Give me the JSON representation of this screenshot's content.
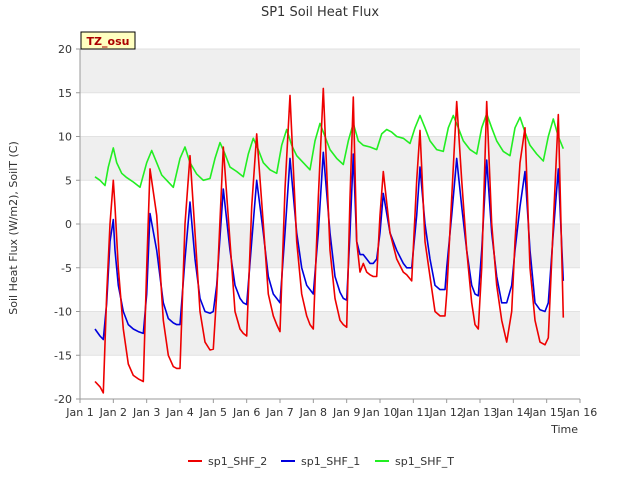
{
  "chart_data": {
    "type": "line",
    "title": "SP1 Soil Heat Flux",
    "xlabel": "Time",
    "ylabel": "Soil Heat Flux (W/m2), SoilT (C)",
    "badge": "TZ_osu",
    "xlim": [
      1,
      16
    ],
    "ylim": [
      -20,
      20
    ],
    "x_ticks": [
      {
        "value": 1,
        "label": "Jan 1"
      },
      {
        "value": 2,
        "label": "Jan 2"
      },
      {
        "value": 3,
        "label": "Jan 3"
      },
      {
        "value": 4,
        "label": "Jan 4"
      },
      {
        "value": 5,
        "label": "Jan 5"
      },
      {
        "value": 6,
        "label": "Jan 6"
      },
      {
        "value": 7,
        "label": "Jan 7"
      },
      {
        "value": 8,
        "label": "Jan 8"
      },
      {
        "value": 9,
        "label": "Jan 9"
      },
      {
        "value": 10,
        "label": "Jan 10"
      },
      {
        "value": 11,
        "label": "Jan 11"
      },
      {
        "value": 12,
        "label": "Jan 12"
      },
      {
        "value": 13,
        "label": "Jan 13"
      },
      {
        "value": 14,
        "label": "Jan 14"
      },
      {
        "value": 15,
        "label": "Jan 15"
      },
      {
        "value": 16,
        "label": "Jan 16"
      }
    ],
    "y_ticks": [
      -20,
      -15,
      -10,
      -5,
      0,
      5,
      10,
      15,
      20
    ],
    "grid": true,
    "legend_position": "bottom",
    "series": [
      {
        "name": "sp1_SHF_2",
        "color": "#ee0000",
        "x": [
          1.45,
          1.6,
          1.7,
          1.8,
          1.9,
          2.0,
          2.05,
          2.15,
          2.3,
          2.45,
          2.6,
          2.75,
          2.9,
          3.0,
          3.1,
          3.3,
          3.5,
          3.65,
          3.8,
          3.9,
          4.0,
          4.15,
          4.3,
          4.45,
          4.6,
          4.75,
          4.9,
          5.0,
          5.1,
          5.3,
          5.5,
          5.65,
          5.8,
          5.9,
          6.0,
          6.15,
          6.3,
          6.5,
          6.65,
          6.8,
          6.9,
          7.0,
          7.15,
          7.3,
          7.5,
          7.65,
          7.8,
          7.9,
          8.0,
          8.15,
          8.3,
          8.5,
          8.65,
          8.8,
          8.9,
          9.0,
          9.1,
          9.2,
          9.3,
          9.4,
          9.5,
          9.6,
          9.7,
          9.8,
          9.9,
          10.0,
          10.1,
          10.3,
          10.5,
          10.7,
          10.8,
          10.95,
          11.1,
          11.2,
          11.35,
          11.5,
          11.65,
          11.8,
          11.95,
          12.0,
          12.15,
          12.3,
          12.45,
          12.6,
          12.75,
          12.85,
          12.95,
          13.05,
          13.2,
          13.35,
          13.5,
          13.65,
          13.8,
          13.95,
          14.05,
          14.2,
          14.35,
          14.5,
          14.65,
          14.8,
          14.95,
          15.05,
          15.2,
          15.35,
          15.5
        ],
        "y": [
          -18,
          -18.6,
          -19.3,
          -8,
          0,
          5,
          2,
          -5,
          -12,
          -16,
          -17.3,
          -17.7,
          -18,
          -5,
          6.3,
          1,
          -11,
          -15,
          -16.3,
          -16.5,
          -16.5,
          0,
          7.8,
          -1,
          -10,
          -13.5,
          -14.4,
          -14.3,
          -8,
          8.8,
          -2,
          -10,
          -12,
          -12.5,
          -12.8,
          2,
          10.3,
          0,
          -8,
          -10.5,
          -11.5,
          -12.3,
          4,
          14.7,
          -2,
          -8,
          -10.5,
          -11.5,
          -12,
          3,
          15.5,
          -3,
          -8.5,
          -11,
          -11.5,
          -11.8,
          3,
          14.5,
          -2,
          -5.5,
          -4.5,
          -5.5,
          -5.8,
          -6,
          -6,
          1,
          6,
          -1,
          -4,
          -5.5,
          -5.8,
          -6.5,
          5,
          10.7,
          -2,
          -6,
          -10,
          -10.5,
          -10.5,
          -8,
          3,
          14,
          5,
          -3,
          -9,
          -11.5,
          -12,
          -5,
          14,
          0,
          -7,
          -11,
          -13.5,
          -10,
          -2,
          7,
          11,
          -5,
          -11,
          -13.5,
          -13.8,
          -13,
          0,
          12.5,
          -10.7
        ]
      },
      {
        "name": "sp1_SHF_1",
        "color": "#0000dd",
        "x": [
          1.45,
          1.6,
          1.7,
          1.8,
          1.9,
          2.0,
          2.05,
          2.15,
          2.3,
          2.45,
          2.6,
          2.75,
          2.9,
          3.0,
          3.1,
          3.3,
          3.5,
          3.65,
          3.8,
          3.9,
          4.0,
          4.15,
          4.3,
          4.45,
          4.6,
          4.75,
          4.9,
          5.0,
          5.1,
          5.3,
          5.5,
          5.65,
          5.8,
          5.9,
          6.0,
          6.15,
          6.3,
          6.5,
          6.65,
          6.8,
          6.9,
          7.0,
          7.15,
          7.3,
          7.5,
          7.65,
          7.8,
          7.9,
          8.0,
          8.15,
          8.3,
          8.5,
          8.65,
          8.8,
          8.9,
          9.0,
          9.1,
          9.2,
          9.3,
          9.4,
          9.5,
          9.6,
          9.7,
          9.8,
          9.9,
          10.0,
          10.1,
          10.3,
          10.5,
          10.7,
          10.8,
          10.95,
          11.1,
          11.2,
          11.35,
          11.5,
          11.65,
          11.8,
          11.95,
          12.0,
          12.15,
          12.3,
          12.45,
          12.6,
          12.75,
          12.85,
          12.95,
          13.05,
          13.2,
          13.35,
          13.5,
          13.65,
          13.8,
          13.95,
          14.05,
          14.2,
          14.35,
          14.5,
          14.65,
          14.8,
          14.95,
          15.05,
          15.2,
          15.35,
          15.5
        ],
        "y": [
          -12,
          -12.8,
          -13.2,
          -9,
          -2,
          0.5,
          -3,
          -7,
          -10,
          -11.5,
          -12,
          -12.3,
          -12.5,
          -8,
          1.2,
          -3,
          -9,
          -10.8,
          -11.3,
          -11.5,
          -11.5,
          -4,
          2.5,
          -4,
          -8.5,
          -10,
          -10.2,
          -10,
          -7,
          4,
          -3,
          -7,
          -8.5,
          -9,
          -9.2,
          -2,
          5,
          -1,
          -6,
          -8,
          -8.5,
          -9,
          -1,
          7.5,
          -1,
          -5,
          -7,
          -7.5,
          -8,
          -1,
          8.2,
          -1,
          -6,
          -7.8,
          -8.5,
          -8.7,
          -1,
          8,
          -2,
          -3.5,
          -3.5,
          -4,
          -4.5,
          -4.5,
          -4,
          -1,
          3.5,
          -1,
          -3,
          -4.5,
          -5,
          -5,
          1,
          6.5,
          0,
          -4,
          -7,
          -7.5,
          -7.5,
          -5,
          1,
          7.5,
          2,
          -3,
          -7,
          -8,
          -8.2,
          -3,
          7.3,
          -1,
          -6,
          -9,
          -9,
          -7,
          -3,
          2,
          6,
          -3,
          -9,
          -9.8,
          -10,
          -9,
          -1,
          6.3,
          -6.5
        ]
      },
      {
        "name": "sp1_SHF_T",
        "color": "#22ee22",
        "x": [
          1.45,
          1.6,
          1.75,
          1.85,
          2.0,
          2.1,
          2.25,
          2.4,
          2.6,
          2.8,
          3.0,
          3.15,
          3.3,
          3.45,
          3.6,
          3.8,
          4.0,
          4.15,
          4.3,
          4.5,
          4.7,
          4.9,
          5.05,
          5.2,
          5.35,
          5.5,
          5.7,
          5.9,
          6.05,
          6.2,
          6.35,
          6.5,
          6.7,
          6.9,
          7.05,
          7.2,
          7.35,
          7.5,
          7.7,
          7.9,
          8.05,
          8.2,
          8.35,
          8.5,
          8.7,
          8.9,
          9.05,
          9.2,
          9.35,
          9.5,
          9.7,
          9.9,
          10.05,
          10.2,
          10.35,
          10.5,
          10.7,
          10.9,
          11.05,
          11.2,
          11.35,
          11.5,
          11.7,
          11.9,
          12.05,
          12.2,
          12.35,
          12.5,
          12.7,
          12.9,
          13.05,
          13.2,
          13.35,
          13.5,
          13.7,
          13.9,
          14.05,
          14.2,
          14.35,
          14.5,
          14.7,
          14.9,
          15.05,
          15.2,
          15.35,
          15.5
        ],
        "y": [
          5.4,
          5,
          4.4,
          6.5,
          8.7,
          7,
          5.8,
          5.3,
          4.8,
          4.2,
          7,
          8.4,
          7,
          5.6,
          5,
          4.2,
          7.5,
          8.8,
          7,
          5.7,
          5,
          5.2,
          7.5,
          9.3,
          8,
          6.5,
          6,
          5.4,
          8,
          9.8,
          8.5,
          7,
          6.2,
          5.8,
          9,
          10.8,
          9,
          7.8,
          7,
          6.2,
          9.5,
          11.5,
          10,
          8.5,
          7.5,
          6.8,
          9.5,
          11.5,
          9.5,
          9,
          8.8,
          8.5,
          10.3,
          10.8,
          10.5,
          10,
          9.8,
          9.2,
          11,
          12.4,
          11,
          9.5,
          8.5,
          8.3,
          11,
          12.4,
          11,
          9.5,
          8.5,
          8,
          11,
          12.6,
          11,
          9.5,
          8.3,
          7.8,
          11,
          12.2,
          10.5,
          9,
          8,
          7.2,
          10,
          12,
          10,
          8.6
        ]
      }
    ]
  }
}
